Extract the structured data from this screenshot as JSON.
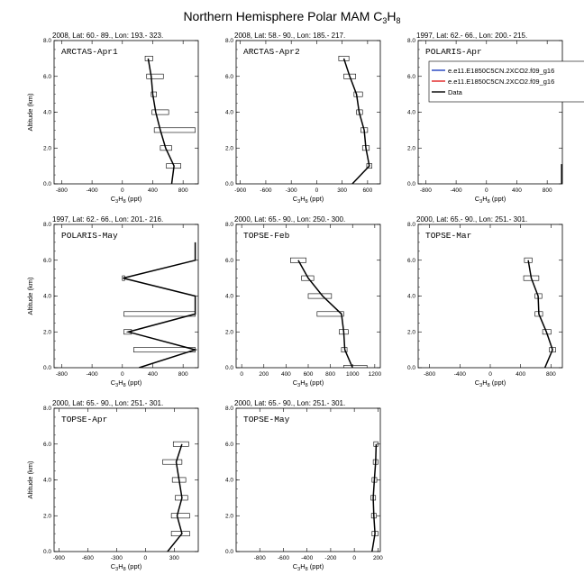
{
  "figure": {
    "title_main": "Northern Hemisphere Polar MAM C",
    "title_sub1": "3",
    "title_mid": "H",
    "title_sub2": "8",
    "ylabel": "Altitude (km)",
    "xlabel_main": "C",
    "xlabel_sub1": "3",
    "xlabel_mid": "H",
    "xlabel_sub2": "8",
    "xlabel_unit": " (ppt)"
  },
  "legend": {
    "entries": [
      {
        "label": "e.e11.E1850C5CN.2XCO2.f09_g16",
        "color": "#1f3fbf"
      },
      {
        "label": "e.e11.E1850C5CN.2XCO2.f09_g16",
        "color": "#e02020"
      },
      {
        "label": "Data",
        "color": "#000000"
      }
    ]
  },
  "chart_data": [
    {
      "type": "line",
      "name": "ARCTAS-Apr1",
      "header": "2008, Lat:  60.- 89., Lon: 193.- 323.",
      "xlim": [
        -900,
        1000
      ],
      "ylim": [
        0,
        8
      ],
      "xticks": [
        -800,
        -400,
        0,
        400,
        800
      ],
      "xticklabels": [
        "-800",
        "-400",
        "0",
        "400",
        "800"
      ],
      "yticks": [
        0,
        2,
        4,
        6,
        8
      ],
      "yticklabels": [
        "0.0",
        "2.0",
        "4.0",
        "6.0",
        "8.0"
      ],
      "data": {
        "alt": [
          0.0,
          1.0,
          2.0,
          3.0,
          4.0,
          5.0,
          6.0,
          7.0
        ],
        "mean": [
          650,
          680,
          570,
          500,
          440,
          400,
          380,
          340
        ]
      },
      "boxes": [
        {
          "alt": 1.0,
          "lo": 580,
          "hi": 770
        },
        {
          "alt": 2.0,
          "lo": 500,
          "hi": 650
        },
        {
          "alt": 3.0,
          "lo": 420,
          "hi": 960
        },
        {
          "alt": 4.0,
          "lo": 390,
          "hi": 610
        },
        {
          "alt": 5.0,
          "lo": 380,
          "hi": 450
        },
        {
          "alt": 6.0,
          "lo": 320,
          "hi": 540
        },
        {
          "alt": 7.0,
          "lo": 300,
          "hi": 400
        }
      ]
    },
    {
      "type": "line",
      "name": "ARCTAS-Apr2",
      "header": "2008, Lat:  58.- 90., Lon: 185.- 217.",
      "xlim": [
        -950,
        750
      ],
      "ylim": [
        0,
        8
      ],
      "xticks": [
        -900,
        -600,
        -300,
        0,
        300,
        600
      ],
      "xticklabels": [
        "-900",
        "-600",
        "-300",
        "0",
        "300",
        "600"
      ],
      "yticks": [
        0,
        2,
        4,
        6,
        8
      ],
      "yticklabels": [
        "0.0",
        "2.0",
        "4.0",
        "6.0",
        "8.0"
      ],
      "data": {
        "alt": [
          0.0,
          1.0,
          2.0,
          3.0,
          4.0,
          5.0,
          6.0,
          7.0
        ],
        "mean": [
          420,
          620,
          580,
          560,
          500,
          470,
          390,
          320
        ]
      },
      "boxes": [
        {
          "alt": 1.0,
          "lo": 590,
          "hi": 650
        },
        {
          "alt": 2.0,
          "lo": 540,
          "hi": 620
        },
        {
          "alt": 3.0,
          "lo": 520,
          "hi": 600
        },
        {
          "alt": 4.0,
          "lo": 470,
          "hi": 540
        },
        {
          "alt": 5.0,
          "lo": 440,
          "hi": 540
        },
        {
          "alt": 6.0,
          "lo": 320,
          "hi": 460
        },
        {
          "alt": 7.0,
          "lo": 260,
          "hi": 380
        }
      ]
    },
    {
      "type": "line",
      "name": "POLARIS-Apr",
      "header": "1997, Lat:  62.- 66., Lon: 200.- 215.",
      "xlim": [
        -900,
        1000
      ],
      "ylim": [
        0,
        8
      ],
      "xticks": [
        -800,
        -400,
        0,
        400,
        800
      ],
      "xticklabels": [
        "-800",
        "-400",
        "0",
        "400",
        "800"
      ],
      "yticks": [
        0,
        2,
        4,
        6,
        8
      ],
      "yticklabels": [
        "0.0",
        "2.0",
        "4.0",
        "6.0",
        "8.0"
      ],
      "data": {
        "alt": [
          0.0,
          1.1
        ],
        "mean": [
          990,
          990
        ]
      },
      "boxes": []
    },
    {
      "type": "line",
      "name": "POLARIS-May",
      "header": "1997, Lat:  62.- 66., Lon: 201.- 216.",
      "xlim": [
        -900,
        1000
      ],
      "ylim": [
        0,
        8
      ],
      "xticks": [
        -800,
        -400,
        0,
        400,
        800
      ],
      "xticklabels": [
        "-800",
        "-400",
        "0",
        "400",
        "800"
      ],
      "yticks": [
        0,
        2,
        4,
        6,
        8
      ],
      "yticklabels": [
        "0.0",
        "2.0",
        "4.0",
        "6.0",
        "8.0"
      ],
      "data": {
        "alt": [
          0.0,
          1.0,
          2.0,
          3.0,
          4.0,
          5.0,
          6.0,
          7.0
        ],
        "mean": [
          220,
          960,
          80,
          960,
          960,
          10,
          960,
          960
        ]
      },
      "boxes": [
        {
          "alt": 1.0,
          "lo": 150,
          "hi": 960
        },
        {
          "alt": 2.0,
          "lo": 20,
          "hi": 120
        },
        {
          "alt": 3.0,
          "lo": 20,
          "hi": 960
        },
        {
          "alt": 5.0,
          "lo": 0,
          "hi": 30
        }
      ]
    },
    {
      "type": "line",
      "name": "TOPSE-Feb",
      "header": "2000, Lat:  65.- 90., Lon: 250.- 300.",
      "xlim": [
        -50,
        1250
      ],
      "ylim": [
        0,
        8
      ],
      "xticks": [
        0,
        200,
        400,
        600,
        800,
        1000,
        1200
      ],
      "xticklabels": [
        "0",
        "200",
        "400",
        "600",
        "800",
        "1000",
        "1200"
      ],
      "yticks": [
        0,
        2,
        4,
        6,
        8
      ],
      "yticklabels": [
        "0.0",
        "2.0",
        "4.0",
        "6.0",
        "8.0"
      ],
      "data": {
        "alt": [
          0.0,
          1.0,
          2.0,
          3.0,
          4.0,
          5.0,
          6.0
        ],
        "mean": [
          1000,
          930,
          920,
          900,
          730,
          600,
          510
        ]
      },
      "boxes": [
        {
          "alt": 0.0,
          "lo": 920,
          "hi": 1130
        },
        {
          "alt": 1.0,
          "lo": 900,
          "hi": 950
        },
        {
          "alt": 2.0,
          "lo": 880,
          "hi": 960
        },
        {
          "alt": 3.0,
          "lo": 680,
          "hi": 920
        },
        {
          "alt": 4.0,
          "lo": 600,
          "hi": 810
        },
        {
          "alt": 5.0,
          "lo": 540,
          "hi": 650
        },
        {
          "alt": 6.0,
          "lo": 440,
          "hi": 580
        }
      ]
    },
    {
      "type": "line",
      "name": "TOPSE-Mar",
      "header": "2000, Lat:  65.- 90., Lon: 251.- 301.",
      "xlim": [
        -950,
        950
      ],
      "ylim": [
        0,
        8
      ],
      "xticks": [
        -800,
        -400,
        0,
        400,
        800
      ],
      "xticklabels": [
        "-800",
        "-400",
        "0",
        "400",
        "800"
      ],
      "yticks": [
        0,
        2,
        4,
        6,
        8
      ],
      "yticklabels": [
        "0.0",
        "2.0",
        "4.0",
        "6.0",
        "8.0"
      ],
      "data": {
        "alt": [
          0.0,
          1.0,
          2.0,
          3.0,
          4.0,
          5.0,
          6.0
        ],
        "mean": [
          720,
          820,
          740,
          640,
          630,
          540,
          500
        ]
      },
      "boxes": [
        {
          "alt": 1.0,
          "lo": 780,
          "hi": 860
        },
        {
          "alt": 2.0,
          "lo": 690,
          "hi": 800
        },
        {
          "alt": 3.0,
          "lo": 590,
          "hi": 690
        },
        {
          "alt": 4.0,
          "lo": 590,
          "hi": 680
        },
        {
          "alt": 5.0,
          "lo": 440,
          "hi": 640
        },
        {
          "alt": 6.0,
          "lo": 450,
          "hi": 550
        }
      ]
    },
    {
      "type": "line",
      "name": "TOPSE-Apr",
      "header": "2000, Lat:  65.- 90., Lon: 251.- 301.",
      "xlim": [
        -950,
        550
      ],
      "ylim": [
        0,
        8
      ],
      "xticks": [
        -900,
        -600,
        -300,
        0,
        300
      ],
      "xticklabels": [
        "-900",
        "-600",
        "-300",
        "0",
        "300"
      ],
      "yticks": [
        0,
        2,
        4,
        6,
        8
      ],
      "yticklabels": [
        "0.0",
        "2.0",
        "4.0",
        "6.0",
        "8.0"
      ],
      "data": {
        "alt": [
          0.0,
          1.0,
          2.0,
          3.0,
          4.0,
          5.0,
          6.0
        ],
        "mean": [
          230,
          380,
          330,
          380,
          350,
          320,
          380
        ]
      },
      "boxes": [
        {
          "alt": 1.0,
          "lo": 270,
          "hi": 460
        },
        {
          "alt": 2.0,
          "lo": 270,
          "hi": 460
        },
        {
          "alt": 3.0,
          "lo": 310,
          "hi": 440
        },
        {
          "alt": 4.0,
          "lo": 280,
          "hi": 420
        },
        {
          "alt": 5.0,
          "lo": 180,
          "hi": 380
        },
        {
          "alt": 6.0,
          "lo": 290,
          "hi": 450
        }
      ]
    },
    {
      "type": "line",
      "name": "TOPSE-May",
      "header": "2000, Lat:  65.- 90., Lon: 251.- 301.",
      "xlim": [
        -1000,
        220
      ],
      "ylim": [
        0,
        8
      ],
      "xticks": [
        -800,
        -600,
        -400,
        -200,
        0,
        200
      ],
      "xticklabels": [
        "-800",
        "-600",
        "-400",
        "-200",
        "0",
        "200"
      ],
      "yticks": [
        0,
        2,
        4,
        6,
        8
      ],
      "yticklabels": [
        "0.0",
        "2.0",
        "4.0",
        "6.0",
        "8.0"
      ],
      "data": {
        "alt": [
          0.0,
          1.0,
          2.0,
          3.0,
          4.0,
          5.0,
          6.0
        ],
        "mean": [
          150,
          175,
          165,
          160,
          170,
          180,
          185
        ]
      },
      "boxes": [
        {
          "alt": 1.0,
          "lo": 150,
          "hi": 200
        },
        {
          "alt": 2.0,
          "lo": 145,
          "hi": 185
        },
        {
          "alt": 3.0,
          "lo": 140,
          "hi": 180
        },
        {
          "alt": 4.0,
          "lo": 150,
          "hi": 190
        },
        {
          "alt": 5.0,
          "lo": 160,
          "hi": 200
        },
        {
          "alt": 6.0,
          "lo": 165,
          "hi": 200
        }
      ]
    }
  ]
}
